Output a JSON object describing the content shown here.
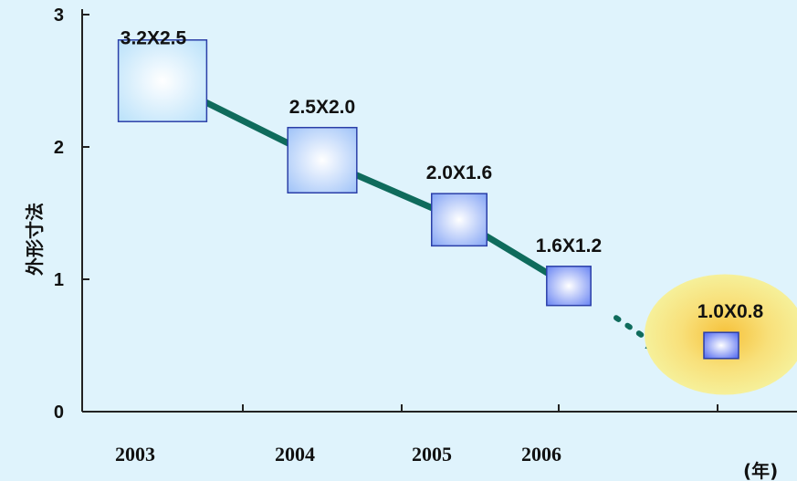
{
  "chart_data": {
    "type": "scatter",
    "title": "",
    "xlabel": "",
    "ylabel": "外形寸法",
    "x_unit": "(年)",
    "x_categories": [
      "2003",
      "2004",
      "2005",
      "2006",
      ""
    ],
    "yticks": [
      "0",
      "1",
      "2",
      "3"
    ],
    "ylim": [
      0,
      3
    ],
    "grid": false,
    "legend": "none",
    "points": [
      {
        "x": "2003",
        "y": 2.5,
        "label": "3.2X2.5",
        "w": 3.2,
        "h": 2.5
      },
      {
        "x": "2004",
        "y": 1.9,
        "label": "2.5X2.0",
        "w": 2.5,
        "h": 2.0
      },
      {
        "x": "2005",
        "y": 1.45,
        "label": "2.0X1.6",
        "w": 2.0,
        "h": 1.6
      },
      {
        "x": "2006",
        "y": 0.95,
        "label": "1.6X1.2",
        "w": 1.6,
        "h": 1.2
      },
      {
        "x": "",
        "y": 0.5,
        "label": "1.0X0.8",
        "w": 1.0,
        "h": 0.8,
        "projected": true
      }
    ],
    "colors": {
      "background": "#dff3fc",
      "trend_line": "#0f6b5c",
      "highlight": "#f6ec8a",
      "box_border": "#2b3fa8"
    }
  }
}
